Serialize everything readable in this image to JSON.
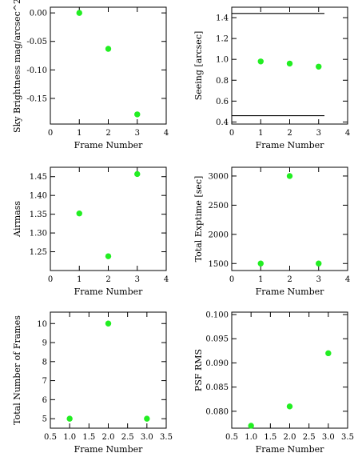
{
  "chart_data": [
    {
      "type": "scatter",
      "xlabel": "Frame Number",
      "ylabel": "Sky Brightness mag/arcsec^2",
      "xlim": [
        0,
        4
      ],
      "ylim": [
        -0.195,
        0.01
      ],
      "xticks": [
        0,
        1,
        2,
        3,
        4
      ],
      "yticks": [
        0.0,
        -0.05,
        -0.1,
        -0.15
      ],
      "xtick_labels": [
        "0",
        "1",
        "2",
        "3",
        "4"
      ],
      "ytick_labels": [
        "0.00",
        "-0.05",
        "-0.10",
        "-0.15"
      ],
      "series": [
        {
          "x": [
            1,
            2,
            3
          ],
          "y": [
            0.0,
            -0.063,
            -0.178
          ]
        }
      ],
      "hlines": []
    },
    {
      "type": "scatter",
      "xlabel": "Frame Number",
      "ylabel": "Seeing [arcsec]",
      "xlim": [
        0,
        4
      ],
      "ylim": [
        0.38,
        1.5
      ],
      "xticks": [
        0,
        1,
        2,
        3,
        4
      ],
      "yticks": [
        0.4,
        0.6,
        0.8,
        1.0,
        1.2,
        1.4
      ],
      "xtick_labels": [
        "0",
        "1",
        "2",
        "3",
        "4"
      ],
      "ytick_labels": [
        "0.4",
        "0.6",
        "0.8",
        "1.0",
        "1.2",
        "1.4"
      ],
      "series": [
        {
          "x": [
            1,
            2,
            3
          ],
          "y": [
            0.98,
            0.96,
            0.93
          ]
        }
      ],
      "hlines": [
        {
          "y": 1.44,
          "x0": 0,
          "x1": 3.2
        },
        {
          "y": 0.46,
          "x0": 0,
          "x1": 3.2
        }
      ]
    },
    {
      "type": "scatter",
      "xlabel": "Frame Number",
      "ylabel": "Airmass",
      "xlim": [
        0,
        4
      ],
      "ylim": [
        1.2,
        1.475
      ],
      "xticks": [
        0,
        1,
        2,
        3,
        4
      ],
      "yticks": [
        1.25,
        1.3,
        1.35,
        1.4,
        1.45
      ],
      "xtick_labels": [
        "0",
        "1",
        "2",
        "3",
        "4"
      ],
      "ytick_labels": [
        "1.25",
        "1.30",
        "1.35",
        "1.40",
        "1.45"
      ],
      "series": [
        {
          "x": [
            1,
            2,
            3
          ],
          "y": [
            1.352,
            1.238,
            1.457
          ]
        }
      ],
      "hlines": []
    },
    {
      "type": "scatter",
      "xlabel": "Frame Number",
      "ylabel": "Total Exptime [sec]",
      "xlim": [
        0,
        4
      ],
      "ylim": [
        1380,
        3150
      ],
      "xticks": [
        0,
        1,
        2,
        3,
        4
      ],
      "yticks": [
        1500,
        2000,
        2500,
        3000
      ],
      "xtick_labels": [
        "0",
        "1",
        "2",
        "3",
        "4"
      ],
      "ytick_labels": [
        "1500",
        "2000",
        "2500",
        "3000"
      ],
      "series": [
        {
          "x": [
            1,
            2,
            3
          ],
          "y": [
            1500,
            3000,
            1500
          ]
        }
      ],
      "hlines": []
    },
    {
      "type": "scatter",
      "xlabel": "Frame Number",
      "ylabel": "Total Number of Frames",
      "xlim": [
        0.5,
        3.5
      ],
      "ylim": [
        4.5,
        10.6
      ],
      "xticks": [
        0.5,
        1.0,
        1.5,
        2.0,
        2.5,
        3.0,
        3.5
      ],
      "yticks": [
        5,
        6,
        7,
        8,
        9,
        10
      ],
      "xtick_labels": [
        "0.5",
        "1.0",
        "1.5",
        "2.0",
        "2.5",
        "3.0",
        "3.5"
      ],
      "ytick_labels": [
        "5",
        "6",
        "7",
        "8",
        "9",
        "10"
      ],
      "series": [
        {
          "x": [
            1,
            2,
            3
          ],
          "y": [
            5,
            10,
            5
          ]
        }
      ],
      "hlines": []
    },
    {
      "type": "scatter",
      "xlabel": "Frame Number",
      "ylabel": "PSF RMS",
      "xlim": [
        0.5,
        3.5
      ],
      "ylim": [
        0.0765,
        0.1005
      ],
      "xticks": [
        0.5,
        1.0,
        1.5,
        2.0,
        2.5,
        3.0,
        3.5
      ],
      "yticks": [
        0.08,
        0.085,
        0.09,
        0.095,
        0.1
      ],
      "xtick_labels": [
        "0.5",
        "1.0",
        "1.5",
        "2.0",
        "2.5",
        "3.0",
        "3.5"
      ],
      "ytick_labels": [
        "0.080",
        "0.085",
        "0.090",
        "0.095",
        "0.100"
      ],
      "series": [
        {
          "x": [
            1,
            2,
            3
          ],
          "y": [
            0.077,
            0.081,
            0.092
          ]
        }
      ],
      "hlines": []
    }
  ],
  "colors": {
    "marker": "#22ee22",
    "axes": "#000000",
    "background": "#ffffff"
  }
}
